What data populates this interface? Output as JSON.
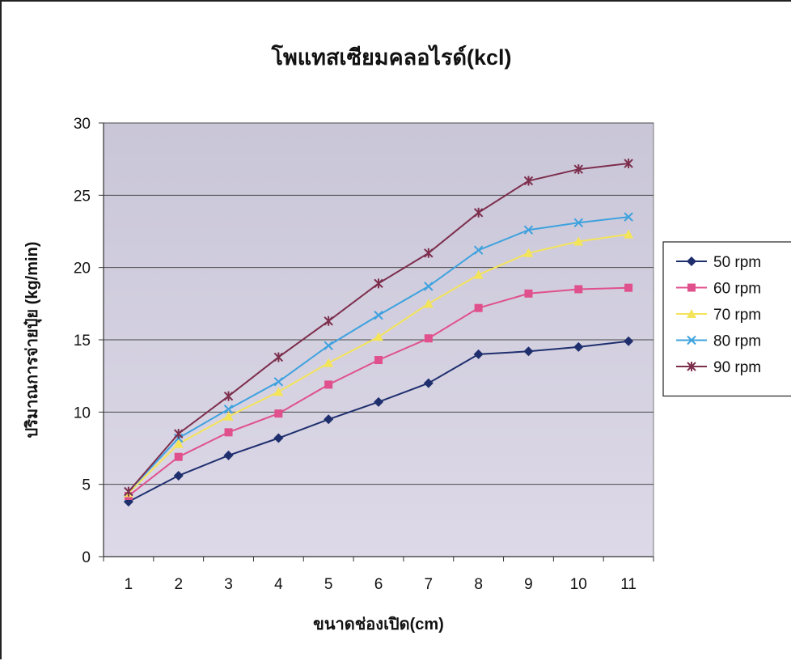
{
  "chart_data": {
    "type": "line",
    "title": "โพแทสเซียมคลอไรด์(kcl)",
    "xlabel": "ขนาดช่องเปิด(cm)",
    "ylabel": "ปริมาณการจ่ายปุ๋ย (kg/min)",
    "categories": [
      "1",
      "2",
      "3",
      "4",
      "5",
      "6",
      "7",
      "8",
      "9",
      "10",
      "11"
    ],
    "ylim": [
      0,
      30
    ],
    "yticks": [
      0,
      5,
      10,
      15,
      20,
      25,
      30
    ],
    "grid": true,
    "legend_position": "right",
    "series": [
      {
        "name": "50 rpm",
        "color": "#1f2f6e",
        "marker": "diamond",
        "values": [
          3.8,
          5.6,
          7.0,
          8.2,
          9.5,
          10.7,
          12.0,
          14.0,
          14.2,
          14.5,
          14.9
        ]
      },
      {
        "name": "60 rpm",
        "color": "#e0508c",
        "marker": "square",
        "values": [
          4.2,
          6.9,
          8.6,
          9.9,
          11.9,
          13.6,
          15.1,
          17.2,
          18.2,
          18.5,
          18.6
        ]
      },
      {
        "name": "70 rpm",
        "color": "#f4e45a",
        "marker": "triangle",
        "values": [
          4.4,
          7.8,
          9.7,
          11.4,
          13.4,
          15.2,
          17.5,
          19.5,
          21.0,
          21.8,
          22.3
        ]
      },
      {
        "name": "80 rpm",
        "color": "#3ea2de",
        "marker": "x",
        "values": [
          4.5,
          8.2,
          10.2,
          12.1,
          14.6,
          16.7,
          18.7,
          21.2,
          22.6,
          23.1,
          23.5
        ]
      },
      {
        "name": "90 rpm",
        "color": "#7d2e4c",
        "marker": "star",
        "values": [
          4.5,
          8.5,
          11.1,
          13.8,
          16.3,
          18.9,
          21.0,
          23.8,
          26.0,
          26.8,
          27.2
        ]
      }
    ]
  }
}
